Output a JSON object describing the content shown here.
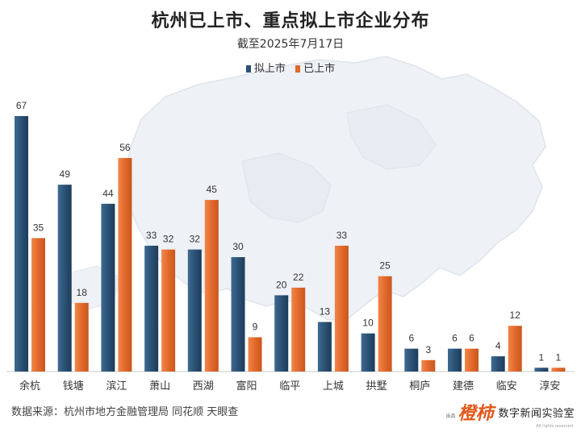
{
  "header": {
    "title": "杭州已上市、重点拟上市企业分布",
    "subtitle": "截至2025年7月17日"
  },
  "legend": {
    "items": [
      {
        "label": "拟上市",
        "color": "#2b5175"
      },
      {
        "label": "已上市",
        "color": "#e2692b"
      }
    ]
  },
  "chart_data": {
    "type": "bar",
    "categories": [
      "余杭",
      "钱塘",
      "滨江",
      "萧山",
      "西湖",
      "富阳",
      "临平",
      "上城",
      "拱墅",
      "桐庐",
      "建德",
      "临安",
      "淳安"
    ],
    "series": [
      {
        "name": "拟上市",
        "color": "#2b5175",
        "values": [
          67,
          49,
          44,
          33,
          32,
          30,
          20,
          13,
          10,
          6,
          6,
          4,
          1
        ]
      },
      {
        "name": "已上市",
        "color": "#e2692b",
        "values": [
          35,
          18,
          56,
          32,
          45,
          9,
          22,
          33,
          25,
          3,
          6,
          12,
          1
        ]
      }
    ],
    "ylim": [
      0,
      67
    ],
    "grid": false,
    "legend_position": "top-center"
  },
  "footer": {
    "source": "数据来源：杭州市地方金融管理局 同花顺 天眼查",
    "brand_prefix": "出品",
    "brand_logo": "橙柿",
    "brand_name": "数字新闻实验室",
    "brand_rights": "All rights reserved"
  }
}
